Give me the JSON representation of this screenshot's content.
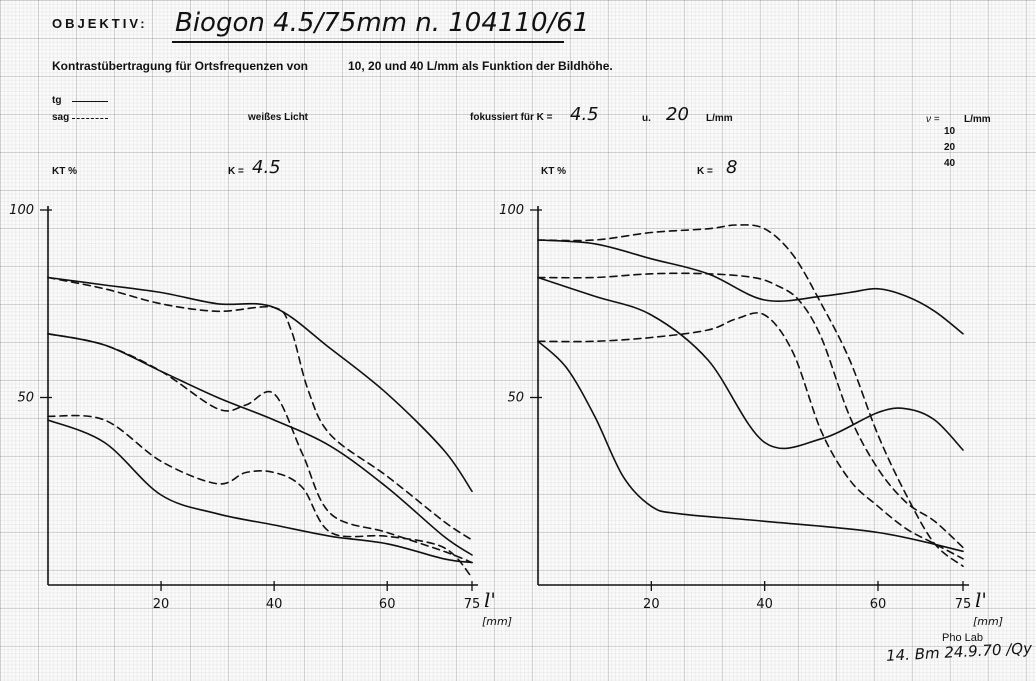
{
  "header": {
    "objective_label": "OBJEKTIV:",
    "objective_name": "Biogon 4.5/75mm n. 104110/61",
    "subtitle_a": "Kontrastübertragung für Ortsfrequenzen von",
    "subtitle_b": "10, 20 und 40 L/mm als Funktion der Bildhöhe."
  },
  "legend": {
    "tg": "tg",
    "sag": "sag",
    "light": "weißes Licht",
    "focus_label": "fokussiert für K =",
    "focus_k": "4.5",
    "focus_u": "u.",
    "focus_freq": "20",
    "focus_unit": "L/mm",
    "nu_label": "ν =",
    "nu_unit": "L/mm",
    "frequencies": [
      "10",
      "20",
      "40"
    ]
  },
  "footer": {
    "lab": "Pho Lab",
    "signature": "14. Bm 24.9.70 /Qy"
  },
  "chart_data": [
    {
      "type": "line",
      "ylabel": "KT %",
      "panel_label": "K =",
      "panel_value": "4.5",
      "xlabel": "l'",
      "xunit": "[mm]",
      "xlim": [
        0,
        75
      ],
      "ylim": [
        0,
        100
      ],
      "xticks": [
        "20",
        "40",
        "60",
        "75"
      ],
      "yticks": [
        "100",
        "50"
      ],
      "grid": true,
      "series": [
        {
          "style": "tg",
          "x": [
            0,
            10,
            20,
            30,
            40,
            50,
            60,
            70,
            75
          ],
          "y": [
            82,
            80,
            78,
            75,
            74,
            63,
            51,
            36,
            25
          ]
        },
        {
          "style": "sag",
          "x": [
            0,
            10,
            20,
            30,
            40,
            43,
            46,
            50,
            60,
            70,
            75
          ],
          "y": [
            82,
            79,
            75,
            73,
            74,
            68,
            52,
            40,
            29,
            17,
            12
          ]
        },
        {
          "style": "tg",
          "x": [
            0,
            10,
            20,
            30,
            40,
            50,
            60,
            70,
            75
          ],
          "y": [
            67,
            64,
            57,
            50,
            44,
            37,
            26,
            13,
            8
          ]
        },
        {
          "style": "sag",
          "x": [
            0,
            10,
            20,
            30,
            35,
            40,
            45,
            50,
            60,
            70,
            75
          ],
          "y": [
            67,
            64,
            57,
            47,
            48,
            51,
            35,
            19,
            14,
            9,
            6
          ]
        },
        {
          "style": "tg",
          "x": [
            0,
            10,
            20,
            30,
            40,
            50,
            60,
            70,
            75
          ],
          "y": [
            44,
            38,
            24,
            19,
            16,
            13,
            11,
            7,
            6
          ]
        },
        {
          "style": "sag",
          "x": [
            0,
            10,
            20,
            30,
            35,
            40,
            45,
            50,
            60,
            70,
            75
          ],
          "y": [
            45,
            44,
            33,
            27,
            30,
            30,
            26,
            14,
            13,
            10,
            2
          ]
        }
      ]
    },
    {
      "type": "line",
      "ylabel": "KT %",
      "panel_label": "K =",
      "panel_value": "8",
      "xlabel": "l'",
      "xunit": "[mm]",
      "xlim": [
        0,
        75
      ],
      "ylim": [
        0,
        100
      ],
      "xticks": [
        "20",
        "40",
        "60",
        "75"
      ],
      "yticks": [
        "100",
        "50"
      ],
      "grid": true,
      "series": [
        {
          "style": "tg",
          "x": [
            0,
            10,
            20,
            30,
            40,
            50,
            55,
            60,
            65,
            70,
            75
          ],
          "y": [
            92,
            91,
            87,
            83,
            76,
            77,
            78,
            79,
            77,
            73,
            67
          ]
        },
        {
          "style": "sag",
          "x": [
            0,
            10,
            20,
            30,
            35,
            40,
            45,
            50,
            55,
            60,
            65,
            70,
            75
          ],
          "y": [
            92,
            92,
            94,
            95,
            96,
            95,
            88,
            75,
            60,
            40,
            24,
            11,
            5
          ]
        },
        {
          "style": "tg",
          "x": [
            0,
            10,
            20,
            30,
            40,
            50,
            60,
            65,
            70,
            75
          ],
          "y": [
            82,
            77,
            72,
            60,
            38,
            39,
            46,
            47,
            44,
            36
          ]
        },
        {
          "style": "sag",
          "x": [
            0,
            10,
            20,
            30,
            38,
            42,
            46,
            50,
            55,
            60,
            65,
            70,
            75
          ],
          "y": [
            82,
            82,
            83,
            83,
            82,
            80,
            76,
            66,
            45,
            31,
            22,
            17,
            10
          ]
        },
        {
          "style": "tg",
          "x": [
            0,
            5,
            10,
            15,
            20,
            25,
            40,
            60,
            75
          ],
          "y": [
            65,
            58,
            45,
            29,
            21,
            19,
            17,
            14,
            9
          ]
        },
        {
          "style": "sag",
          "x": [
            0,
            10,
            20,
            30,
            35,
            40,
            45,
            50,
            55,
            60,
            65,
            70,
            75
          ],
          "y": [
            65,
            65,
            66,
            68,
            71,
            72,
            62,
            41,
            28,
            21,
            15,
            11,
            7
          ]
        }
      ]
    }
  ]
}
